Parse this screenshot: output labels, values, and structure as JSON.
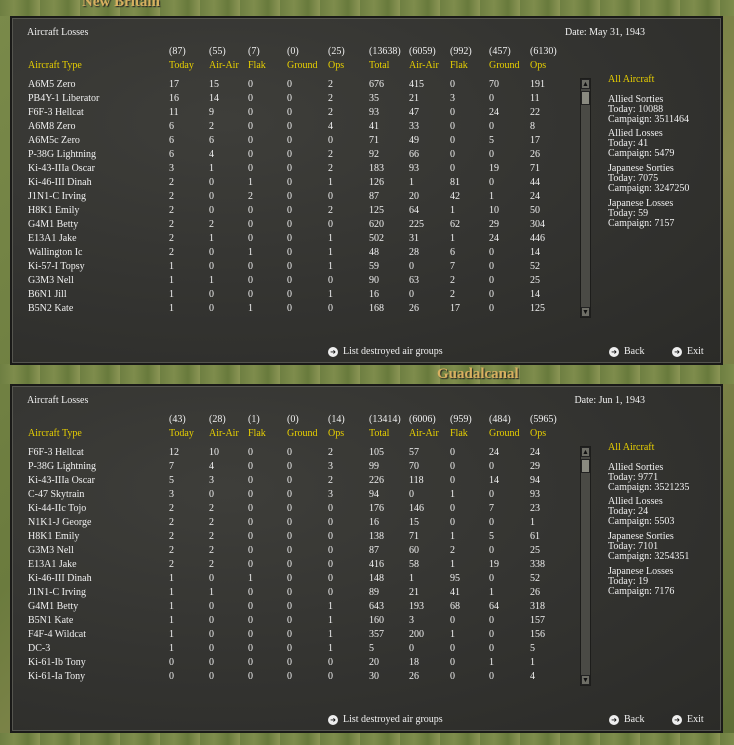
{
  "map": {
    "top_label": "New Britain",
    "mid_label": "Guadalcanal"
  },
  "columns": {
    "labels": [
      "Aircraft Type",
      "Today",
      "Air-Air",
      "Flak",
      "Ground",
      "Ops",
      "Total",
      "Air-Air",
      "Flak",
      "Ground",
      "Ops"
    ]
  },
  "buttons": {
    "list_label": "List destroyed air groups",
    "back_label": "Back",
    "exit_label": "Exit"
  },
  "panels": [
    {
      "title": "Aircraft Losses",
      "date": "Date: May 31, 1943",
      "totals": [
        "(87)",
        "(55)",
        "(7)",
        "(0)",
        "(25)",
        "(13638)",
        "(6059)",
        "(992)",
        "(457)",
        "(6130)"
      ],
      "rows": [
        [
          "A6M5 Zero",
          "17",
          "15",
          "0",
          "0",
          "2",
          "676",
          "415",
          "0",
          "70",
          "191"
        ],
        [
          "PB4Y-1 Liberator",
          "16",
          "14",
          "0",
          "0",
          "2",
          "35",
          "21",
          "3",
          "0",
          "11"
        ],
        [
          "F6F-3 Hellcat",
          "11",
          "9",
          "0",
          "0",
          "2",
          "93",
          "47",
          "0",
          "24",
          "22"
        ],
        [
          "A6M8 Zero",
          "6",
          "2",
          "0",
          "0",
          "4",
          "41",
          "33",
          "0",
          "0",
          "8"
        ],
        [
          "A6M5c Zero",
          "6",
          "6",
          "0",
          "0",
          "0",
          "71",
          "49",
          "0",
          "5",
          "17"
        ],
        [
          "P-38G Lightning",
          "6",
          "4",
          "0",
          "0",
          "2",
          "92",
          "66",
          "0",
          "0",
          "26"
        ],
        [
          "Ki-43-IIIa Oscar",
          "3",
          "1",
          "0",
          "0",
          "2",
          "183",
          "93",
          "0",
          "19",
          "71"
        ],
        [
          "Ki-46-III Dinah",
          "2",
          "0",
          "1",
          "0",
          "1",
          "126",
          "1",
          "81",
          "0",
          "44"
        ],
        [
          "J1N1-C Irving",
          "2",
          "0",
          "2",
          "0",
          "0",
          "87",
          "20",
          "42",
          "1",
          "24"
        ],
        [
          "H8K1 Emily",
          "2",
          "0",
          "0",
          "0",
          "2",
          "125",
          "64",
          "1",
          "10",
          "50"
        ],
        [
          "G4M1 Betty",
          "2",
          "2",
          "0",
          "0",
          "0",
          "620",
          "225",
          "62",
          "29",
          "304"
        ],
        [
          "E13A1 Jake",
          "2",
          "1",
          "0",
          "0",
          "1",
          "502",
          "31",
          "1",
          "24",
          "446"
        ],
        [
          "Wallington Ic",
          "2",
          "0",
          "1",
          "0",
          "1",
          "48",
          "28",
          "6",
          "0",
          "14"
        ],
        [
          "Ki-57-I Topsy",
          "1",
          "0",
          "0",
          "0",
          "1",
          "59",
          "0",
          "7",
          "0",
          "52"
        ],
        [
          "G3M3 Nell",
          "1",
          "1",
          "0",
          "0",
          "0",
          "90",
          "63",
          "2",
          "0",
          "25"
        ],
        [
          "B6N1 Jill",
          "1",
          "0",
          "0",
          "0",
          "1",
          "16",
          "0",
          "2",
          "0",
          "14"
        ],
        [
          "B5N2 Kate",
          "1",
          "0",
          "1",
          "0",
          "0",
          "168",
          "26",
          "17",
          "0",
          "125"
        ]
      ],
      "side": {
        "header": "All Aircraft",
        "blocks": [
          {
            "title": "Allied Sorties",
            "today": "Today:  10088",
            "campaign": "Campaign: 3511464"
          },
          {
            "title": "Allied Losses",
            "today": "Today:  41",
            "campaign": "Campaign: 5479"
          },
          {
            "title": "Japanese Sorties",
            "today": "Today:  7075",
            "campaign": "Campaign: 3247250"
          },
          {
            "title": "Japanese Losses",
            "today": "Today:  59",
            "campaign": "Campaign: 7157"
          }
        ]
      }
    },
    {
      "title": "Aircraft Losses",
      "date": "Date: Jun 1, 1943",
      "totals": [
        "(43)",
        "(28)",
        "(1)",
        "(0)",
        "(14)",
        "(13414)",
        "(6006)",
        "(959)",
        "(484)",
        "(5965)"
      ],
      "rows": [
        [
          "F6F-3 Hellcat",
          "12",
          "10",
          "0",
          "0",
          "2",
          "105",
          "57",
          "0",
          "24",
          "24"
        ],
        [
          "P-38G Lightning",
          "7",
          "4",
          "0",
          "0",
          "3",
          "99",
          "70",
          "0",
          "0",
          "29"
        ],
        [
          "Ki-43-IIIa Oscar",
          "5",
          "3",
          "0",
          "0",
          "2",
          "226",
          "118",
          "0",
          "14",
          "94"
        ],
        [
          "C-47 Skytrain",
          "3",
          "0",
          "0",
          "0",
          "3",
          "94",
          "0",
          "1",
          "0",
          "93"
        ],
        [
          "Ki-44-IIc Tojo",
          "2",
          "2",
          "0",
          "0",
          "0",
          "176",
          "146",
          "0",
          "7",
          "23"
        ],
        [
          "N1K1-J George",
          "2",
          "2",
          "0",
          "0",
          "0",
          "16",
          "15",
          "0",
          "0",
          "1"
        ],
        [
          "H8K1 Emily",
          "2",
          "2",
          "0",
          "0",
          "0",
          "138",
          "71",
          "1",
          "5",
          "61"
        ],
        [
          "G3M3 Nell",
          "2",
          "2",
          "0",
          "0",
          "0",
          "87",
          "60",
          "2",
          "0",
          "25"
        ],
        [
          "E13A1 Jake",
          "2",
          "2",
          "0",
          "0",
          "0",
          "416",
          "58",
          "1",
          "19",
          "338"
        ],
        [
          "Ki-46-III Dinah",
          "1",
          "0",
          "1",
          "0",
          "0",
          "148",
          "1",
          "95",
          "0",
          "52"
        ],
        [
          "J1N1-C Irving",
          "1",
          "1",
          "0",
          "0",
          "0",
          "89",
          "21",
          "41",
          "1",
          "26"
        ],
        [
          "G4M1 Betty",
          "1",
          "0",
          "0",
          "0",
          "1",
          "643",
          "193",
          "68",
          "64",
          "318"
        ],
        [
          "B5N1 Kate",
          "1",
          "0",
          "0",
          "0",
          "1",
          "160",
          "3",
          "0",
          "0",
          "157"
        ],
        [
          "F4F-4 Wildcat",
          "1",
          "0",
          "0",
          "0",
          "1",
          "357",
          "200",
          "1",
          "0",
          "156"
        ],
        [
          "DC-3",
          "1",
          "0",
          "0",
          "0",
          "1",
          "5",
          "0",
          "0",
          "0",
          "5"
        ],
        [
          "Ki-61-Ib Tony",
          "0",
          "0",
          "0",
          "0",
          "0",
          "20",
          "18",
          "0",
          "1",
          "1"
        ],
        [
          "Ki-61-Ia Tony",
          "0",
          "0",
          "0",
          "0",
          "0",
          "30",
          "26",
          "0",
          "0",
          "4"
        ]
      ],
      "side": {
        "header": "All Aircraft",
        "blocks": [
          {
            "title": "Allied Sorties",
            "today": "Today:  9771",
            "campaign": "Campaign: 3521235"
          },
          {
            "title": "Allied Losses",
            "today": "Today:  24",
            "campaign": "Campaign: 5503"
          },
          {
            "title": "Japanese Sorties",
            "today": "Today:  7101",
            "campaign": "Campaign: 3254351"
          },
          {
            "title": "Japanese Losses",
            "today": "Today:  19",
            "campaign": "Campaign: 7176"
          }
        ]
      }
    }
  ]
}
